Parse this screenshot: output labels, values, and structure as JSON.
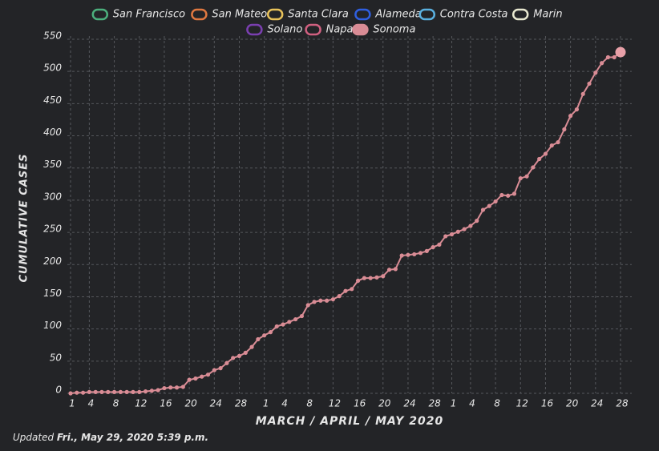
{
  "chart_data": {
    "type": "line",
    "y_axis_label": "CUMULATIVE CASES",
    "x_axis_label": "MARCH / APRIL / MAY 2020",
    "footer": {
      "prefix": "Updated",
      "date": "Fri., May 29, 2020 5:39 p.m."
    },
    "ylim": [
      0,
      550
    ],
    "yticks": [
      0,
      50,
      100,
      150,
      200,
      250,
      300,
      350,
      400,
      450,
      500,
      550
    ],
    "grid": true,
    "categories": [
      "1",
      null,
      null,
      "4",
      null,
      null,
      null,
      "8",
      null,
      null,
      null,
      "12",
      null,
      null,
      null,
      "16",
      null,
      null,
      null,
      "20",
      null,
      null,
      null,
      "24",
      null,
      null,
      null,
      "28",
      null,
      null,
      null,
      "1",
      null,
      null,
      "4",
      null,
      null,
      null,
      "8",
      null,
      null,
      null,
      "12",
      null,
      null,
      null,
      "16",
      null,
      null,
      null,
      "20",
      null,
      null,
      null,
      "24",
      null,
      null,
      null,
      "28",
      null,
      null,
      "1",
      null,
      null,
      "4",
      null,
      null,
      null,
      "8",
      null,
      null,
      null,
      "12",
      null,
      null,
      null,
      "16",
      null,
      null,
      null,
      "20",
      null,
      null,
      null,
      "24",
      null,
      null,
      null,
      "28"
    ],
    "series": [
      {
        "name": "San Francisco",
        "color": "#4caf7d",
        "visible": false
      },
      {
        "name": "San Mateo",
        "color": "#e07840",
        "visible": false
      },
      {
        "name": "Santa Clara",
        "color": "#e8c25a",
        "visible": false
      },
      {
        "name": "Alameda",
        "color": "#2f5fe0",
        "visible": false
      },
      {
        "name": "Contra Costa",
        "color": "#5ab0e0",
        "visible": false
      },
      {
        "name": "Marin",
        "color": "#e8e8d0",
        "visible": false
      },
      {
        "name": "Solano",
        "color": "#7a3fb0",
        "visible": false
      },
      {
        "name": "Napa",
        "color": "#d06080",
        "visible": false
      },
      {
        "name": "Sonoma",
        "color": "#d98c95",
        "visible": true,
        "values": [
          0,
          1,
          1,
          2,
          2,
          2,
          2,
          2,
          2,
          2,
          2,
          2,
          3,
          4,
          5,
          8,
          9,
          9,
          10,
          21,
          23,
          26,
          29,
          36,
          39,
          47,
          55,
          58,
          63,
          72,
          84,
          90,
          95,
          104,
          107,
          111,
          115,
          120,
          137,
          142,
          144,
          144,
          146,
          151,
          159,
          162,
          175,
          179,
          179,
          180,
          182,
          192,
          193,
          214,
          215,
          216,
          218,
          221,
          227,
          231,
          244,
          247,
          251,
          255,
          260,
          268,
          285,
          291,
          298,
          308,
          307,
          310,
          334,
          337,
          351,
          364,
          372,
          385,
          390,
          410,
          431,
          441,
          465,
          481,
          498,
          513,
          522,
          522,
          530
        ]
      }
    ]
  }
}
